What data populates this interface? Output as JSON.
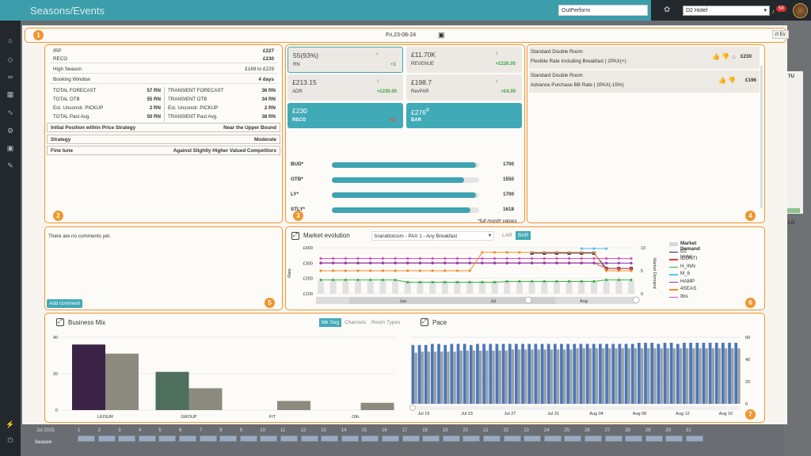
{
  "app": {
    "title": "Seasons/Events",
    "tenant": "OutPerform",
    "hotel": "D2 Hotel",
    "notification_count": "58"
  },
  "header": {
    "date": "Fri,23-08-24",
    "export_label": "rt Ev"
  },
  "panels": {
    "n1": "1",
    "n2": "2",
    "n3": "3",
    "n4": "4",
    "n5": "5",
    "n6": "6",
    "n7": "7"
  },
  "pricing": {
    "irp_label": "IRP",
    "irp_value": "£227",
    "reco_label": "RECO",
    "reco_value": "£230",
    "season_label": "High Season",
    "season_value": "£169 to £229",
    "window_label": "Booking Window",
    "window_value": "4 days",
    "left": [
      {
        "label": "TOTAL FORECAST",
        "value": "57 RN"
      },
      {
        "label": "TOTAL OTB",
        "value": "55 RN"
      },
      {
        "label": "Est. Unconstr. PICKUP",
        "value": "2 RN"
      },
      {
        "label": "TOTAL Past Avg.",
        "value": "50 RN"
      }
    ],
    "right": [
      {
        "label": "TRANSIENT FORECAST",
        "value": "36 RN"
      },
      {
        "label": "TRANSIENT OTB",
        "value": "34 RN"
      },
      {
        "label": "Est. Unconstr. PICKUP",
        "value": "2 RN"
      },
      {
        "label": "TRANSIENT Past Avg.",
        "value": "38 RN"
      }
    ],
    "position_label": "Initial Position within Price Strategy",
    "position_value": "Near the Upper Bound",
    "strategy_label": "Strategy",
    "strategy_value": "Moderate",
    "finetune_label": "Fine tune",
    "finetune_value": "Against Slightly Higher Valued Competitors"
  },
  "kpis": {
    "rn": {
      "value": "55(93%)",
      "label": "RN",
      "delta": "+1"
    },
    "revenue": {
      "value": "£11.70K",
      "label": "REVENUE",
      "delta": "+£230.00"
    },
    "adr": {
      "value": "£213.15",
      "label": "ADR",
      "delta": "+£230.00"
    },
    "revpar": {
      "value": "£198.7",
      "label": "RevPAR",
      "delta": "+£4.00"
    },
    "reco": {
      "value": "£230",
      "label": "RECO",
      "delta": "+£1"
    },
    "bar": {
      "value": "£276",
      "sup": "#",
      "label": "BAR"
    }
  },
  "bars": [
    {
      "label": "BUD*",
      "value": "1700",
      "fill": 0.98
    },
    {
      "label": "OTB*",
      "value": "1550",
      "fill": 0.9
    },
    {
      "label": "LY*",
      "value": "1700",
      "fill": 0.98
    },
    {
      "label": "STLY*",
      "value": "1618",
      "fill": 0.94
    }
  ],
  "bars_note": "*full month values",
  "rooms": [
    {
      "line1": "Standard Double Room",
      "line2": "Flexible Rate Including Breakfast | 2PAX(+)",
      "price": "£230"
    },
    {
      "line1": "Standard Double Room",
      "line2": "Advance Purchase BB Rate | 2PAX(-15%)",
      "price": "£196"
    }
  ],
  "comments": {
    "empty": "There are no comments yet.",
    "add_label": "Add comment"
  },
  "market": {
    "title": "Market evolution",
    "selector": "branddotcom - PAX 1 - Any Breakfast",
    "tab_lar": "LAR",
    "tab_bar": "BAR",
    "legend": [
      "Market Demand",
      "D2 Hotel",
      "ICONTI",
      "H_INN",
      "M_6",
      "HAMP",
      "4SEAS",
      "Ibis"
    ],
    "legend_colors": [
      "#d8d8d8",
      "#1f2a6b",
      "#d94040",
      "#3cb44b",
      "#4fc3e8",
      "#8a3ab9",
      "#f28c28",
      "#e14ec4"
    ]
  },
  "chart_data": [
    {
      "type": "line",
      "title": "Market evolution",
      "xlabel": "",
      "ylabel": "Rate",
      "y2label": "Market Demand",
      "ylim": [
        100,
        400
      ],
      "y2lim": [
        0,
        10
      ],
      "yticks": [
        "£400",
        "£300",
        "£200",
        "£100"
      ],
      "y2ticks": [
        "10",
        "5",
        "0"
      ],
      "xticks": [
        "Jun",
        "Jul",
        "Aug"
      ],
      "n": 26,
      "series": [
        {
          "name": "D2 Hotel",
          "color": "#1f2a6b",
          "values": [
            null,
            null,
            null,
            null,
            null,
            null,
            null,
            null,
            null,
            null,
            null,
            null,
            null,
            null,
            null,
            null,
            null,
            365,
            365,
            365,
            365,
            365,
            365,
            265,
            265,
            265
          ]
        },
        {
          "name": "ICONTI",
          "color": "#d94040",
          "values": [
            302,
            302,
            302,
            302,
            302,
            302,
            302,
            302,
            302,
            302,
            302,
            302,
            302,
            302,
            302,
            302,
            302,
            302,
            302,
            302,
            302,
            302,
            302,
            265,
            265,
            265
          ]
        },
        {
          "name": "H_INN",
          "color": "#3cb44b",
          "values": [
            190,
            190,
            190,
            190,
            190,
            190,
            190,
            175,
            175,
            175,
            175,
            175,
            175,
            175,
            175,
            180,
            180,
            180,
            180,
            180,
            180,
            180,
            180,
            190,
            190,
            190
          ]
        },
        {
          "name": "M_6",
          "color": "#4fc3e8",
          "values": [
            null,
            null,
            null,
            null,
            null,
            null,
            null,
            null,
            null,
            null,
            null,
            null,
            null,
            null,
            null,
            null,
            null,
            null,
            null,
            null,
            null,
            395,
            395,
            395,
            null,
            null
          ]
        },
        {
          "name": "HAMP",
          "color": "#8a3ab9",
          "values": [
            300,
            300,
            300,
            300,
            300,
            300,
            300,
            300,
            300,
            300,
            300,
            300,
            300,
            300,
            300,
            300,
            300,
            300,
            300,
            300,
            300,
            300,
            300,
            300,
            300,
            300
          ]
        },
        {
          "name": "4SEAS",
          "color": "#f28c28",
          "values": [
            250,
            250,
            250,
            250,
            250,
            250,
            250,
            250,
            250,
            250,
            250,
            250,
            250,
            370,
            370,
            370,
            370,
            370,
            370,
            370,
            370,
            370,
            370,
            250,
            250,
            250
          ]
        },
        {
          "name": "Ibis",
          "color": "#e14ec4",
          "values": [
            330,
            330,
            330,
            330,
            330,
            330,
            330,
            330,
            330,
            330,
            330,
            330,
            330,
            330,
            330,
            330,
            330,
            330,
            330,
            330,
            330,
            330,
            330,
            330,
            330,
            330
          ]
        }
      ],
      "demand": [
        2,
        2,
        2,
        2,
        2,
        2,
        2,
        2,
        2,
        2,
        2,
        2,
        2,
        2,
        2,
        2,
        2,
        2,
        2,
        2,
        2,
        2,
        2,
        2,
        2,
        2
      ]
    },
    {
      "type": "bar",
      "title": "Business Mix",
      "categories": [
        "LEISUR",
        "GROUP",
        "FIT",
        "Oth."
      ],
      "ylim": [
        0,
        40
      ],
      "yticks": [
        "40",
        "20",
        "0"
      ],
      "series": [
        {
          "name": "",
          "color": "#3a2345",
          "values": [
            36,
            21,
            null,
            null
          ]
        },
        {
          "name": "",
          "color": "#8d8a80",
          "values": [
            31,
            12,
            5,
            4
          ]
        }
      ],
      "category_colors": [
        "#3a2345",
        "#4f6f5e",
        "#8d8a80",
        "#8d8a80"
      ]
    },
    {
      "type": "bar",
      "title": "Pace",
      "ylim": [
        0,
        60
      ],
      "yticks": [
        "60",
        "40",
        "20",
        "0"
      ],
      "xticks": [
        "Jul 19",
        "Jul 23",
        "Jul 27",
        "Jul 31",
        "Aug 04",
        "Aug 08",
        "Aug 12",
        "Aug 16"
      ],
      "series": [
        {
          "name": "",
          "color": "#4a78b8",
          "values": [
            53,
            53,
            53,
            54,
            54,
            53,
            54,
            54,
            54,
            53,
            54,
            54,
            54,
            54,
            54,
            54,
            54,
            54,
            54,
            54,
            54,
            54,
            54,
            54,
            54,
            54,
            54,
            54,
            54,
            54,
            54,
            54,
            54,
            54,
            54,
            55,
            55,
            55,
            54,
            55,
            55,
            54,
            55,
            55,
            55,
            55,
            55,
            55,
            55,
            55,
            55
          ]
        },
        {
          "name": "",
          "color": "#9aa0a8",
          "values": [
            46,
            47,
            47,
            47,
            47,
            47,
            47,
            48,
            48,
            48,
            48,
            48,
            48,
            48,
            48,
            49,
            49,
            49,
            49,
            49,
            49,
            49,
            49,
            49,
            49,
            50,
            50,
            50,
            50,
            50,
            50,
            50,
            50,
            50,
            50,
            50,
            50,
            50,
            50,
            50,
            50,
            50,
            50,
            50,
            50,
            50,
            50,
            50,
            50,
            50,
            50
          ]
        }
      ]
    }
  ],
  "business_mix": {
    "title": "Business Mix",
    "tab_mkseg": "Mk Seg",
    "tab_channels": "Channels",
    "tab_roomtypes": "Room Types"
  },
  "pace": {
    "title": "Pace"
  },
  "background": {
    "year": "Jul 2025",
    "season": "Season",
    "edge_tu": "TU",
    "edge_lo": "LO"
  },
  "icons": {
    "calendar": "calendar-icon",
    "close": "close-icon",
    "thumb_up": "thumb-up-icon",
    "thumb_down": "thumb-down-icon",
    "lock": "lock-icon",
    "expand": "expand-icon"
  }
}
